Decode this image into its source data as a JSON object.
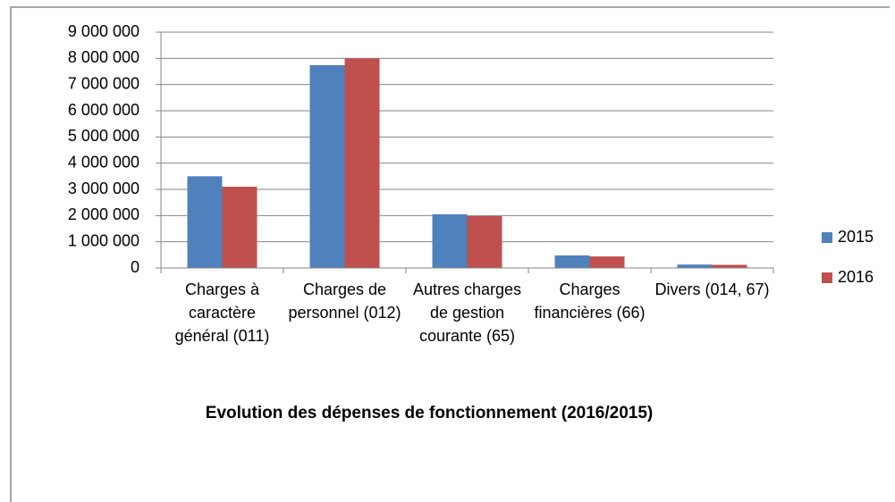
{
  "chart_data": {
    "type": "bar",
    "title": "Evolution des dépenses de fonctionnement (2016/2015)",
    "categories": [
      "Charges à caractère général (011)",
      "Charges de personnel (012)",
      "Autres charges de gestion courante (65)",
      "Charges financières (66)",
      "Divers (014, 67)"
    ],
    "series": [
      {
        "name": "2015",
        "color": "#4f81bd",
        "values": [
          3500000,
          7740000,
          2050000,
          480000,
          130000
        ]
      },
      {
        "name": "2016",
        "color": "#c0504d",
        "values": [
          3100000,
          8000000,
          1980000,
          440000,
          120000
        ]
      }
    ],
    "ylim": [
      0,
      9000000
    ],
    "yticks": [
      {
        "value": 0,
        "label": "0"
      },
      {
        "value": 1000000,
        "label": "1 000 000"
      },
      {
        "value": 2000000,
        "label": "2 000 000"
      },
      {
        "value": 3000000,
        "label": "3 000 000"
      },
      {
        "value": 4000000,
        "label": "4 000 000"
      },
      {
        "value": 5000000,
        "label": "5 000 000"
      },
      {
        "value": 6000000,
        "label": "6 000 000"
      },
      {
        "value": 7000000,
        "label": "7 000 000"
      },
      {
        "value": 8000000,
        "label": "8 000 000"
      },
      {
        "value": 9000000,
        "label": "9 000 000"
      }
    ],
    "grid": true,
    "legend": "right"
  }
}
